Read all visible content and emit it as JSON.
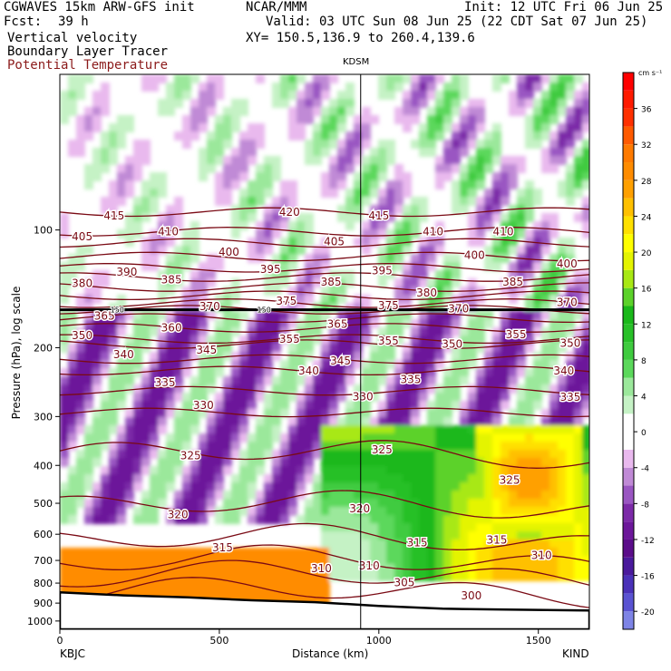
{
  "header": {
    "model": "CGWAVES 15km ARW-GFS init",
    "org": "NCAR/MMM",
    "init": "Init: 12 UTC Fri 06 Jun 25",
    "fcst_label": "Fcst:",
    "fcst_value": "39 h",
    "valid": "Valid: 03 UTC Sun 08 Jun 25 (22 CDT Sat 07 Jun 25)",
    "field1": "Vertical velocity",
    "field2": "Boundary Layer Tracer",
    "field3": "Potential Temperature",
    "xy": "XY= 150.5,136.9 to 260.4,139.6"
  },
  "colors": {
    "theta_contour": "#7a0a14",
    "field3_text": "#8b1a1a"
  },
  "chart_data": {
    "type": "heatmap",
    "title": "",
    "xlabel": "Distance (km)",
    "ylabel": "Pressure (hPa), log scale",
    "xlim": [
      0,
      1660
    ],
    "ylim": [
      1050,
      40
    ],
    "y_scale": "log",
    "x_ticks": [
      0,
      500,
      1000,
      1500
    ],
    "y_ticks": [
      100,
      200,
      300,
      400,
      500,
      600,
      700,
      800,
      900,
      1000
    ],
    "station_marker": {
      "label": "KDSM",
      "x_km": 943
    },
    "endpoints": {
      "left": "KBJC",
      "right": "KIND"
    },
    "colorbar": {
      "units": "cm s⁻¹",
      "ticks": [
        -20,
        -16,
        -12,
        -8,
        -4,
        0,
        4,
        8,
        12,
        16,
        20,
        24,
        28,
        32,
        36
      ],
      "bins": [
        {
          "from": -22,
          "to": -20,
          "color": "#7e84e6"
        },
        {
          "from": -20,
          "to": -18,
          "color": "#5a53d2"
        },
        {
          "from": -18,
          "to": -16,
          "color": "#4a31b8"
        },
        {
          "from": -16,
          "to": -14,
          "color": "#4a1a9c"
        },
        {
          "from": -14,
          "to": -12,
          "color": "#5b0d8a"
        },
        {
          "from": -12,
          "to": -10,
          "color": "#6c179a"
        },
        {
          "from": -10,
          "to": -8,
          "color": "#7c2aa8"
        },
        {
          "from": -8,
          "to": -6,
          "color": "#9a56c2"
        },
        {
          "from": -6,
          "to": -4,
          "color": "#c08ad6"
        },
        {
          "from": -4,
          "to": -2,
          "color": "#e9b9ee"
        },
        {
          "from": -2,
          "to": 2,
          "color": "#ffffff"
        },
        {
          "from": 2,
          "to": 4,
          "color": "#c5f2c5"
        },
        {
          "from": 4,
          "to": 6,
          "color": "#9be89b"
        },
        {
          "from": 6,
          "to": 8,
          "color": "#5bd85b"
        },
        {
          "from": 8,
          "to": 10,
          "color": "#3fcb3f"
        },
        {
          "from": 10,
          "to": 12,
          "color": "#28c028"
        },
        {
          "from": 12,
          "to": 14,
          "color": "#1ab81a"
        },
        {
          "from": 14,
          "to": 16,
          "color": "#5cd22a"
        },
        {
          "from": 16,
          "to": 18,
          "color": "#a8e814"
        },
        {
          "from": 18,
          "to": 20,
          "color": "#e4f400"
        },
        {
          "from": 20,
          "to": 22,
          "color": "#ffff00"
        },
        {
          "from": 22,
          "to": 24,
          "color": "#ffe000"
        },
        {
          "from": 24,
          "to": 26,
          "color": "#ffc000"
        },
        {
          "from": 26,
          "to": 28,
          "color": "#ffa000"
        },
        {
          "from": 28,
          "to": 30,
          "color": "#ff8c00"
        },
        {
          "from": 30,
          "to": 32,
          "color": "#ff7a00"
        },
        {
          "from": 32,
          "to": 34,
          "color": "#ff5a00"
        },
        {
          "from": 34,
          "to": 36,
          "color": "#ff3000"
        },
        {
          "from": 36,
          "to": 38,
          "color": "#ff1a00"
        },
        {
          "from": 38,
          "to": 40,
          "color": "#ff0000"
        }
      ]
    },
    "theta_contours": [
      {
        "level": 415,
        "p": 90
      },
      {
        "level": 410,
        "p": 101
      },
      {
        "level": 405,
        "p": 108
      },
      {
        "level": 400,
        "p": 117
      },
      {
        "level": 395,
        "p": 125
      },
      {
        "level": 390,
        "p": 132
      },
      {
        "level": 385,
        "p": 140
      },
      {
        "level": 380,
        "p": 147
      },
      {
        "level": 375,
        "p": 154
      },
      {
        "level": 370,
        "p": 160
      },
      {
        "level": 365,
        "p": 168
      },
      {
        "level": 360,
        "p": 178
      },
      {
        "level": 355,
        "p": 190
      },
      {
        "level": 350,
        "p": 196
      },
      {
        "level": 345,
        "p": 214
      },
      {
        "level": 340,
        "p": 229
      },
      {
        "level": 335,
        "p": 258
      },
      {
        "level": 330,
        "p": 293
      },
      {
        "level": 325,
        "p": 378
      },
      {
        "level": 320,
        "p": 512
      },
      {
        "level": 315,
        "p": 625
      },
      {
        "level": 310,
        "p": 710
      },
      {
        "level": 305,
        "p": 776
      },
      {
        "level": 300,
        "p": 853
      }
    ],
    "contour_labels": [
      {
        "text": "415",
        "x": 170,
        "p": 92
      },
      {
        "text": "420",
        "x": 720,
        "p": 90
      },
      {
        "text": "415",
        "x": 1000,
        "p": 92
      },
      {
        "text": "410",
        "x": 1170,
        "p": 101
      },
      {
        "text": "410",
        "x": 1390,
        "p": 101
      },
      {
        "text": "410",
        "x": 340,
        "p": 101
      },
      {
        "text": "405",
        "x": 70,
        "p": 104
      },
      {
        "text": "405",
        "x": 860,
        "p": 107
      },
      {
        "text": "400",
        "x": 530,
        "p": 114
      },
      {
        "text": "400",
        "x": 1300,
        "p": 116
      },
      {
        "text": "400",
        "x": 1590,
        "p": 122
      },
      {
        "text": "395",
        "x": 660,
        "p": 126
      },
      {
        "text": "395",
        "x": 1010,
        "p": 127
      },
      {
        "text": "390",
        "x": 210,
        "p": 128
      },
      {
        "text": "385",
        "x": 350,
        "p": 134
      },
      {
        "text": "385",
        "x": 850,
        "p": 136
      },
      {
        "text": "385",
        "x": 1420,
        "p": 136
      },
      {
        "text": "380",
        "x": 70,
        "p": 137
      },
      {
        "text": "380",
        "x": 1150,
        "p": 145
      },
      {
        "text": "375",
        "x": 710,
        "p": 152
      },
      {
        "text": "375",
        "x": 1030,
        "p": 156
      },
      {
        "text": "370",
        "x": 470,
        "p": 157
      },
      {
        "text": "370",
        "x": 1250,
        "p": 159
      },
      {
        "text": "370",
        "x": 1590,
        "p": 153
      },
      {
        "text": "365",
        "x": 140,
        "p": 166
      },
      {
        "text": "365",
        "x": 870,
        "p": 174
      },
      {
        "text": "360",
        "x": 350,
        "p": 178
      },
      {
        "text": "355",
        "x": 720,
        "p": 190
      },
      {
        "text": "355",
        "x": 1030,
        "p": 192
      },
      {
        "text": "355",
        "x": 1430,
        "p": 185
      },
      {
        "text": "350",
        "x": 70,
        "p": 186
      },
      {
        "text": "350",
        "x": 1230,
        "p": 196
      },
      {
        "text": "350",
        "x": 1600,
        "p": 195
      },
      {
        "text": "345",
        "x": 460,
        "p": 203
      },
      {
        "text": "345",
        "x": 880,
        "p": 216
      },
      {
        "text": "340",
        "x": 200,
        "p": 208
      },
      {
        "text": "340",
        "x": 780,
        "p": 229
      },
      {
        "text": "340",
        "x": 1580,
        "p": 229
      },
      {
        "text": "335",
        "x": 330,
        "p": 246
      },
      {
        "text": "335",
        "x": 1100,
        "p": 241
      },
      {
        "text": "335",
        "x": 1600,
        "p": 268
      },
      {
        "text": "330",
        "x": 450,
        "p": 281
      },
      {
        "text": "330",
        "x": 950,
        "p": 267
      },
      {
        "text": "325",
        "x": 410,
        "p": 378
      },
      {
        "text": "325",
        "x": 1010,
        "p": 365
      },
      {
        "text": "325",
        "x": 1410,
        "p": 436
      },
      {
        "text": "320",
        "x": 370,
        "p": 535
      },
      {
        "text": "320",
        "x": 940,
        "p": 516
      },
      {
        "text": "315",
        "x": 510,
        "p": 650
      },
      {
        "text": "315",
        "x": 1120,
        "p": 631
      },
      {
        "text": "315",
        "x": 1370,
        "p": 620
      },
      {
        "text": "310",
        "x": 820,
        "p": 735
      },
      {
        "text": "310",
        "x": 970,
        "p": 723
      },
      {
        "text": "310",
        "x": 1510,
        "p": 680
      },
      {
        "text": "305",
        "x": 1080,
        "p": 797
      },
      {
        "text": "300",
        "x": 1290,
        "p": 862
      }
    ],
    "other_labels": [
      {
        "text": "150",
        "x": 180,
        "p": 160
      },
      {
        "text": "150",
        "x": 640,
        "p": 160
      }
    ],
    "tropopause_p": 160,
    "terrain_pressure": [
      [
        0,
        845
      ],
      [
        200,
        860
      ],
      [
        400,
        870
      ],
      [
        600,
        885
      ],
      [
        800,
        895
      ],
      [
        1000,
        915
      ],
      [
        1200,
        930
      ],
      [
        1400,
        935
      ],
      [
        1660,
        940
      ]
    ]
  }
}
